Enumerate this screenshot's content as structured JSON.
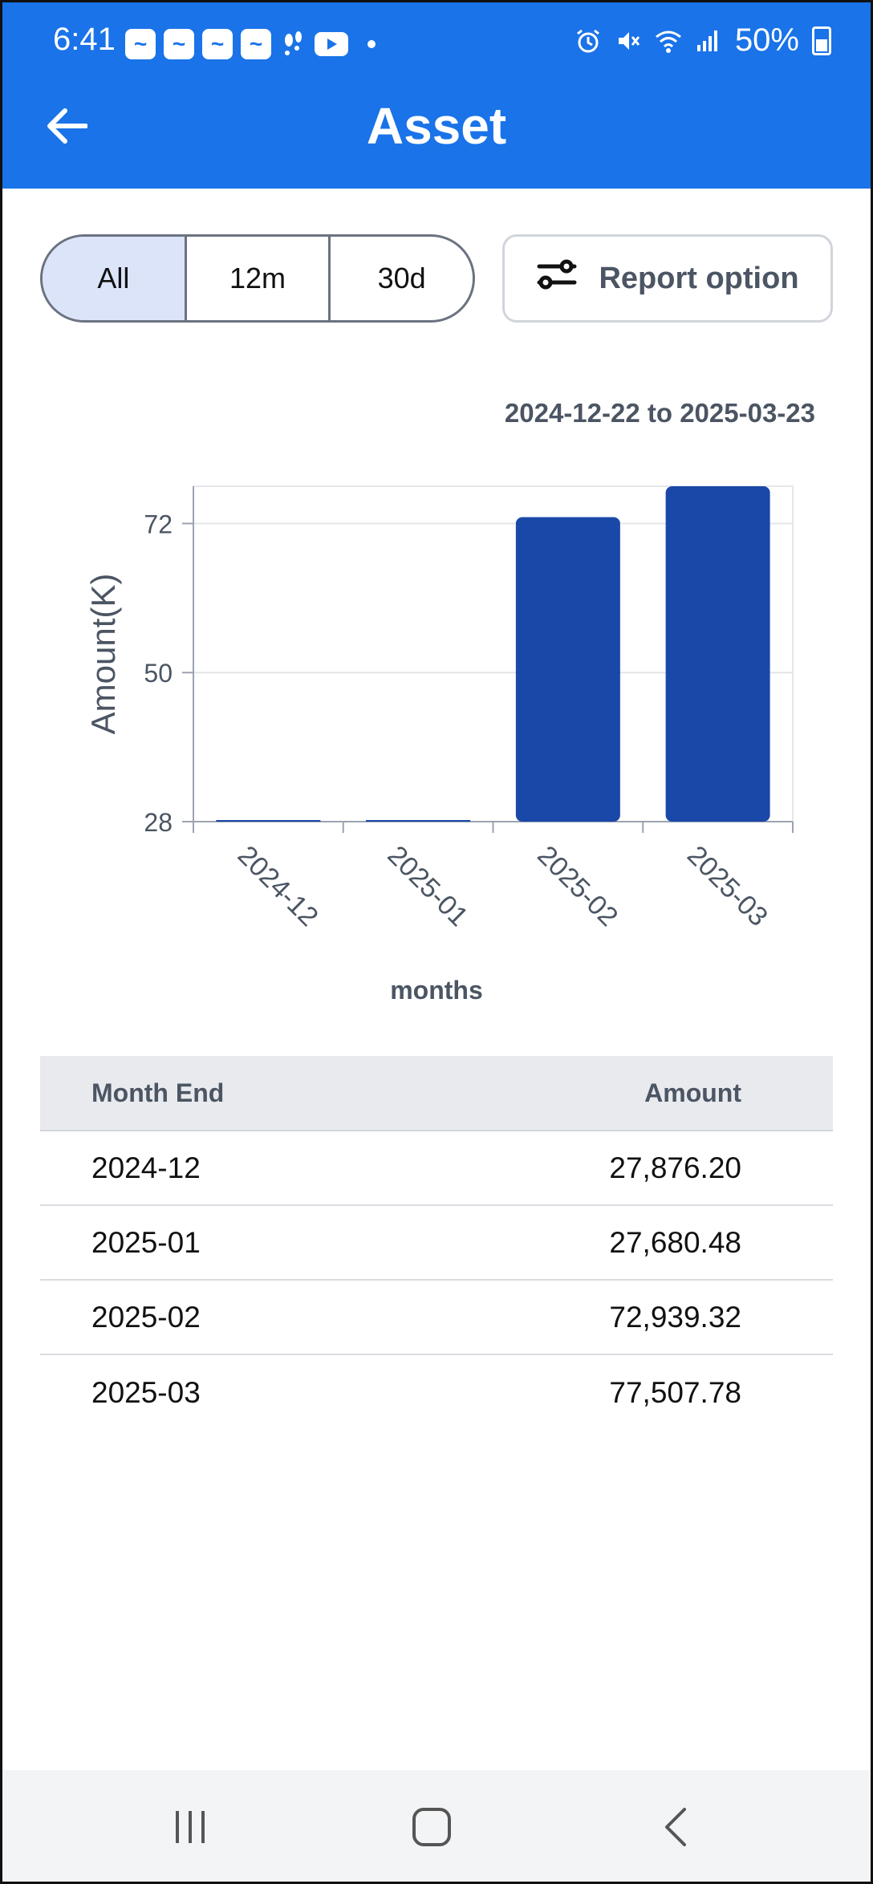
{
  "status_bar": {
    "time": "6:41",
    "battery_percent": "50%",
    "notification_icons": [
      "app-notification-icon",
      "app-notification-icon",
      "app-notification-icon",
      "app-notification-icon",
      "fitness-icon",
      "youtube-icon"
    ],
    "system_icons": [
      "alarm-icon",
      "mute-icon",
      "wifi-icon",
      "signal-icon",
      "battery-icon"
    ]
  },
  "header": {
    "title": "Asset",
    "back_icon": "arrow-left-icon"
  },
  "range_selector": {
    "options": [
      "All",
      "12m",
      "30d"
    ],
    "selected": "All"
  },
  "report_option": {
    "label": "Report option",
    "icon": "sliders-icon"
  },
  "date_range": "2024-12-22 to 2025-03-23",
  "chart_data": {
    "type": "bar",
    "categories": [
      "2024-12",
      "2025-01",
      "2025-02",
      "2025-03"
    ],
    "values": [
      27.8762,
      27.68048,
      72.93932,
      77.50778
    ],
    "xlabel": "months",
    "ylabel": "Amount(K)",
    "yticks": [
      28,
      50,
      72
    ],
    "ylim": [
      28,
      77.5
    ],
    "bar_color": "#1a48a8",
    "grid": true
  },
  "table": {
    "headers": {
      "month": "Month End",
      "amount": "Amount"
    },
    "rows": [
      {
        "month": "2024-12",
        "amount": "27,876.20"
      },
      {
        "month": "2025-01",
        "amount": "27,680.48"
      },
      {
        "month": "2025-02",
        "amount": "72,939.32"
      },
      {
        "month": "2025-03",
        "amount": "77,507.78"
      }
    ]
  },
  "nav_bar": {
    "items": [
      "recent-apps-icon",
      "home-icon",
      "back-icon"
    ]
  },
  "colors": {
    "primary": "#1a73e8",
    "bar": "#1a48a8",
    "segment_active": "#dce4fa"
  }
}
